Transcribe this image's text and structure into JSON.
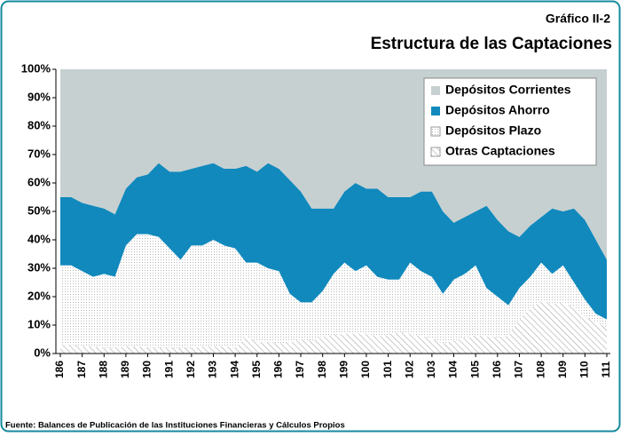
{
  "chart_data": {
    "type": "stacked_area",
    "title": "Estructura de las Captaciones",
    "subtitle": "Gráfico II-2",
    "source": "Fuente: Balances de Publicación de las Instituciones Financieras y Cálculos Propios",
    "categories": [
      "186",
      null,
      "187",
      null,
      "188",
      null,
      "189",
      null,
      "190",
      null,
      "191",
      null,
      "192",
      null,
      "193",
      null,
      "194",
      null,
      "195",
      null,
      "196",
      null,
      "197",
      null,
      "198",
      null,
      "199",
      null,
      "100",
      null,
      "101",
      null,
      "102",
      null,
      "103",
      null,
      "104",
      null,
      "105",
      null,
      "106",
      null,
      "107",
      null,
      "108",
      null,
      "109",
      null,
      "110",
      null,
      "111"
    ],
    "series": [
      {
        "name": "Depósitos Corrientes",
        "color": "#c7d0d0",
        "pattern": "solid",
        "values": [
          45,
          45,
          47,
          48,
          49,
          51,
          42,
          38,
          37,
          33,
          36,
          36,
          35,
          34,
          33,
          35,
          35,
          34,
          36,
          33,
          35,
          39,
          43,
          49,
          49,
          49,
          43,
          40,
          42,
          42,
          45,
          45,
          45,
          43,
          43,
          50,
          54,
          52,
          50,
          48,
          53,
          57,
          59,
          55,
          52,
          49,
          50,
          49,
          53,
          60,
          67
        ]
      },
      {
        "name": "Depósitos Ahorro",
        "color": "#1189bd",
        "pattern": "solid",
        "values": [
          24,
          24,
          24,
          25,
          23,
          22,
          20,
          20,
          21,
          26,
          27,
          31,
          27,
          28,
          27,
          27,
          28,
          34,
          32,
          37,
          36,
          40,
          39,
          33,
          29,
          23,
          25,
          31,
          27,
          31,
          29,
          29,
          23,
          28,
          30,
          29,
          20,
          20,
          19,
          29,
          27,
          26,
          18,
          18,
          16,
          23,
          19,
          26,
          28,
          26,
          21
        ]
      },
      {
        "name": "Depósitos Plazo",
        "color": "#b8b8b8",
        "pattern": "dots",
        "values": [
          28,
          28,
          26.5,
          24.5,
          26,
          25,
          35.5,
          39.5,
          40,
          39,
          35,
          31,
          36,
          35.5,
          37.5,
          35.5,
          35,
          26,
          28,
          26,
          25.5,
          17,
          13,
          13.5,
          16,
          21.5,
          25,
          22,
          24,
          21,
          19.5,
          18.5,
          25,
          23,
          22,
          17.5,
          21.5,
          22.5,
          24.5,
          17,
          14.5,
          10.5,
          11,
          11,
          13.5,
          10.5,
          13,
          9,
          6,
          3,
          3
        ]
      },
      {
        "name": "Otras Captaciones",
        "color": "#a8a8a8",
        "pattern": "hatch",
        "values": [
          3,
          3,
          2.5,
          2.5,
          2,
          2,
          2.5,
          2.5,
          2,
          2,
          2,
          2,
          2,
          2.5,
          2.5,
          2.5,
          2,
          6,
          4,
          4,
          3.5,
          4,
          5,
          4.5,
          6,
          6.5,
          7,
          7,
          7,
          6,
          6.5,
          7.5,
          7,
          6,
          5,
          3.5,
          4.5,
          5.5,
          6.5,
          6,
          5.5,
          6.5,
          12,
          16,
          18.5,
          17.5,
          18,
          16,
          13,
          11,
          9
        ]
      }
    ],
    "ylim": [
      0,
      100
    ],
    "yticks": [
      {
        "value": 0,
        "label": "0%"
      },
      {
        "value": 10,
        "label": "10%"
      },
      {
        "value": 20,
        "label": "20%"
      },
      {
        "value": 30,
        "label": "30%"
      },
      {
        "value": 40,
        "label": "40%"
      },
      {
        "value": 50,
        "label": "50%"
      },
      {
        "value": 60,
        "label": "60%"
      },
      {
        "value": 70,
        "label": "70%"
      },
      {
        "value": 80,
        "label": "80%"
      },
      {
        "value": 90,
        "label": "90%"
      },
      {
        "value": 100,
        "label": "100%"
      }
    ],
    "legend": "upper right"
  }
}
